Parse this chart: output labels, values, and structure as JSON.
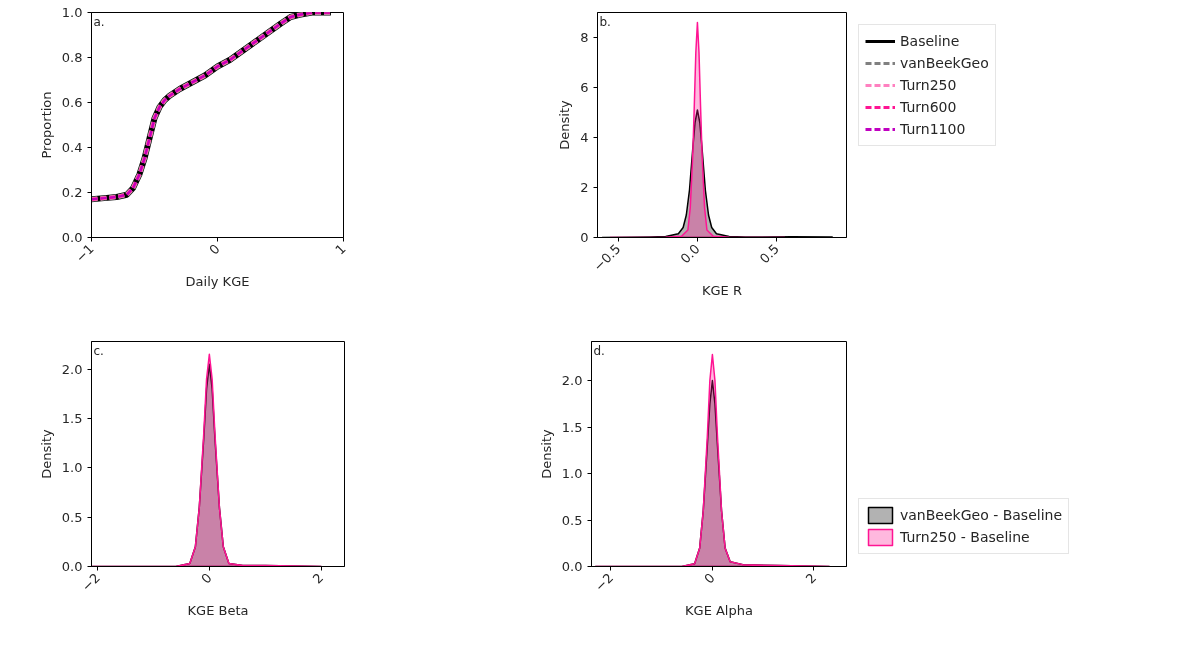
{
  "chart_data": [
    {
      "type": "line",
      "xlabel": "Daily KGE",
      "ylabel": "Proportion",
      "annotations": [
        "a."
      ],
      "grid": false,
      "legend": "top right",
      "xlim": [
        -1,
        1
      ],
      "ylim": [
        0,
        1
      ],
      "xticks": [
        {
          "value": -1,
          "label": "−1"
        },
        0,
        1
      ],
      "yticks": [
        {
          "value": 0,
          "label": "0.0"
        },
        0.2,
        0.4,
        0.6,
        0.8,
        {
          "value": 1,
          "label": "1.0"
        }
      ],
      "x": [
        -1,
        -0.9,
        -0.8,
        -0.72,
        -0.67,
        -0.62,
        -0.58,
        -0.54,
        -0.5,
        -0.46,
        -0.42,
        -0.38,
        -0.3,
        -0.2,
        -0.1,
        0,
        0.1,
        0.2,
        0.3,
        0.4,
        0.5,
        0.58,
        0.65,
        0.75,
        0.9
      ],
      "series": [
        {
          "name": "Baseline",
          "color": "#000000",
          "line_style": "solid",
          "values": [
            0.17,
            0.175,
            0.18,
            0.19,
            0.22,
            0.28,
            0.35,
            0.44,
            0.53,
            0.58,
            0.61,
            0.63,
            0.66,
            0.69,
            0.72,
            0.76,
            0.79,
            0.83,
            0.87,
            0.91,
            0.95,
            0.98,
            0.99,
            1.0,
            1.0
          ]
        },
        {
          "name": "vanBeekGeo",
          "color": "#808080",
          "line_style": "dashed",
          "values": [
            0.17,
            0.175,
            0.18,
            0.19,
            0.22,
            0.28,
            0.35,
            0.44,
            0.53,
            0.58,
            0.61,
            0.63,
            0.66,
            0.69,
            0.72,
            0.76,
            0.79,
            0.83,
            0.87,
            0.91,
            0.95,
            0.98,
            0.99,
            1.0,
            1.0
          ]
        },
        {
          "name": "Turn250",
          "color": "#ff80c0",
          "line_style": "dashed",
          "values": [
            0.17,
            0.175,
            0.18,
            0.19,
            0.22,
            0.28,
            0.35,
            0.44,
            0.53,
            0.58,
            0.61,
            0.63,
            0.66,
            0.69,
            0.72,
            0.76,
            0.79,
            0.83,
            0.87,
            0.91,
            0.95,
            0.98,
            0.99,
            1.0,
            1.0
          ]
        },
        {
          "name": "Turn600",
          "color": "#ff1493",
          "line_style": "dashed",
          "values": [
            0.17,
            0.175,
            0.18,
            0.19,
            0.22,
            0.28,
            0.35,
            0.44,
            0.53,
            0.58,
            0.61,
            0.63,
            0.66,
            0.69,
            0.72,
            0.76,
            0.79,
            0.83,
            0.87,
            0.91,
            0.95,
            0.98,
            0.99,
            1.0,
            1.0
          ]
        },
        {
          "name": "Turn1100",
          "color": "#c000c0",
          "line_style": "dashed",
          "values": [
            0.17,
            0.175,
            0.18,
            0.19,
            0.22,
            0.28,
            0.35,
            0.44,
            0.53,
            0.58,
            0.61,
            0.63,
            0.66,
            0.69,
            0.72,
            0.76,
            0.79,
            0.83,
            0.87,
            0.91,
            0.95,
            0.98,
            0.99,
            1.0,
            1.0
          ]
        }
      ]
    },
    {
      "type": "area",
      "xlabel": "KGE R",
      "ylabel": "Density",
      "annotations": [
        "b."
      ],
      "grid": false,
      "xlim": [
        -0.63,
        0.94
      ],
      "ylim": [
        0,
        9
      ],
      "xticks": [
        {
          "value": -0.5,
          "label": "−0.5"
        },
        {
          "value": 0,
          "label": "0.0"
        },
        0.5
      ],
      "yticks": [
        0,
        2,
        4,
        6,
        8
      ],
      "series": [
        {
          "color": "#000000",
          "x": [
            -0.6,
            -0.3,
            -0.2,
            -0.12,
            -0.09,
            -0.07,
            -0.05,
            -0.03,
            -0.015,
            0,
            0.015,
            0.03,
            0.05,
            0.07,
            0.09,
            0.12,
            0.2,
            0.3,
            0.6,
            0.85
          ],
          "values": [
            0.0,
            0.02,
            0.04,
            0.15,
            0.4,
            0.9,
            1.9,
            3.5,
            4.6,
            5.1,
            4.6,
            3.5,
            1.9,
            0.9,
            0.4,
            0.15,
            0.04,
            0.02,
            0.03,
            0.02
          ]
        },
        {
          "color": "#ff1493",
          "x": [
            -0.55,
            -0.2,
            -0.1,
            -0.06,
            -0.045,
            -0.03,
            -0.02,
            -0.01,
            0,
            0.01,
            0.02,
            0.03,
            0.045,
            0.06,
            0.1,
            0.2,
            0.55
          ],
          "values": [
            0.0,
            0.01,
            0.05,
            0.3,
            1.2,
            3.2,
            5.2,
            7.4,
            8.6,
            7.4,
            5.2,
            3.2,
            1.2,
            0.3,
            0.05,
            0.01,
            0.0
          ]
        }
      ]
    },
    {
      "type": "area",
      "xlabel": "KGE Beta",
      "ylabel": "Density",
      "annotations": [
        "c."
      ],
      "grid": false,
      "xlim": [
        -2.11,
        2.42
      ],
      "ylim": [
        0,
        2.28
      ],
      "xticks": [
        {
          "value": -2,
          "label": "−2"
        },
        0,
        2
      ],
      "yticks": [
        {
          "value": 0,
          "label": "0.0"
        },
        0.5,
        {
          "value": 1,
          "label": "1.0"
        },
        1.5,
        {
          "value": 2,
          "label": "2.0"
        }
      ],
      "series": [
        {
          "color": "#000000",
          "x": [
            -2.1,
            -0.6,
            -0.35,
            -0.25,
            -0.18,
            -0.1,
            -0.05,
            0,
            0.05,
            0.1,
            0.18,
            0.25,
            0.35,
            0.6,
            1.0,
            2.0
          ],
          "values": [
            0.0,
            0.0,
            0.03,
            0.2,
            0.6,
            1.3,
            1.8,
            2.05,
            1.8,
            1.3,
            0.6,
            0.2,
            0.03,
            0.01,
            0.01,
            0.0
          ]
        },
        {
          "color": "#ff1493",
          "x": [
            -2.1,
            -0.6,
            -0.35,
            -0.25,
            -0.18,
            -0.1,
            -0.05,
            0,
            0.05,
            0.1,
            0.18,
            0.25,
            0.35,
            0.6,
            1.0,
            2.0
          ],
          "values": [
            0.0,
            0.0,
            0.03,
            0.2,
            0.6,
            1.35,
            1.9,
            2.15,
            1.9,
            1.35,
            0.6,
            0.2,
            0.03,
            0.01,
            0.01,
            0.0
          ]
        }
      ]
    },
    {
      "type": "area",
      "xlabel": "KGE Alpha",
      "ylabel": "Density",
      "annotations": [
        "d."
      ],
      "grid": false,
      "legend": "bottom right",
      "xlim": [
        -2.38,
        2.64
      ],
      "ylim": [
        0,
        2.42
      ],
      "xticks": [
        {
          "value": -2,
          "label": "−2"
        },
        0,
        2
      ],
      "yticks": [
        {
          "value": 0,
          "label": "0.0"
        },
        0.5,
        {
          "value": 1,
          "label": "1.0"
        },
        1.5,
        {
          "value": 2,
          "label": "2.0"
        }
      ],
      "series": [
        {
          "name": "vanBeekGeo - Baseline",
          "color": "#000000",
          "x": [
            -2.3,
            -0.6,
            -0.35,
            -0.25,
            -0.18,
            -0.1,
            -0.05,
            0,
            0.05,
            0.1,
            0.18,
            0.25,
            0.35,
            0.6,
            1.3,
            2.3
          ],
          "values": [
            0.0,
            0.0,
            0.03,
            0.2,
            0.6,
            1.3,
            1.75,
            2.0,
            1.75,
            1.3,
            0.6,
            0.2,
            0.05,
            0.02,
            0.01,
            0.0
          ]
        },
        {
          "name": "Turn250 - Baseline",
          "color": "#ff1493",
          "x": [
            -2.3,
            -0.6,
            -0.35,
            -0.25,
            -0.18,
            -0.1,
            -0.05,
            0,
            0.05,
            0.1,
            0.18,
            0.25,
            0.35,
            0.6,
            1.3,
            2.3
          ],
          "values": [
            0.0,
            0.0,
            0.03,
            0.2,
            0.6,
            1.4,
            2.0,
            2.28,
            2.0,
            1.4,
            0.6,
            0.2,
            0.05,
            0.02,
            0.01,
            0.0
          ]
        }
      ]
    }
  ]
}
